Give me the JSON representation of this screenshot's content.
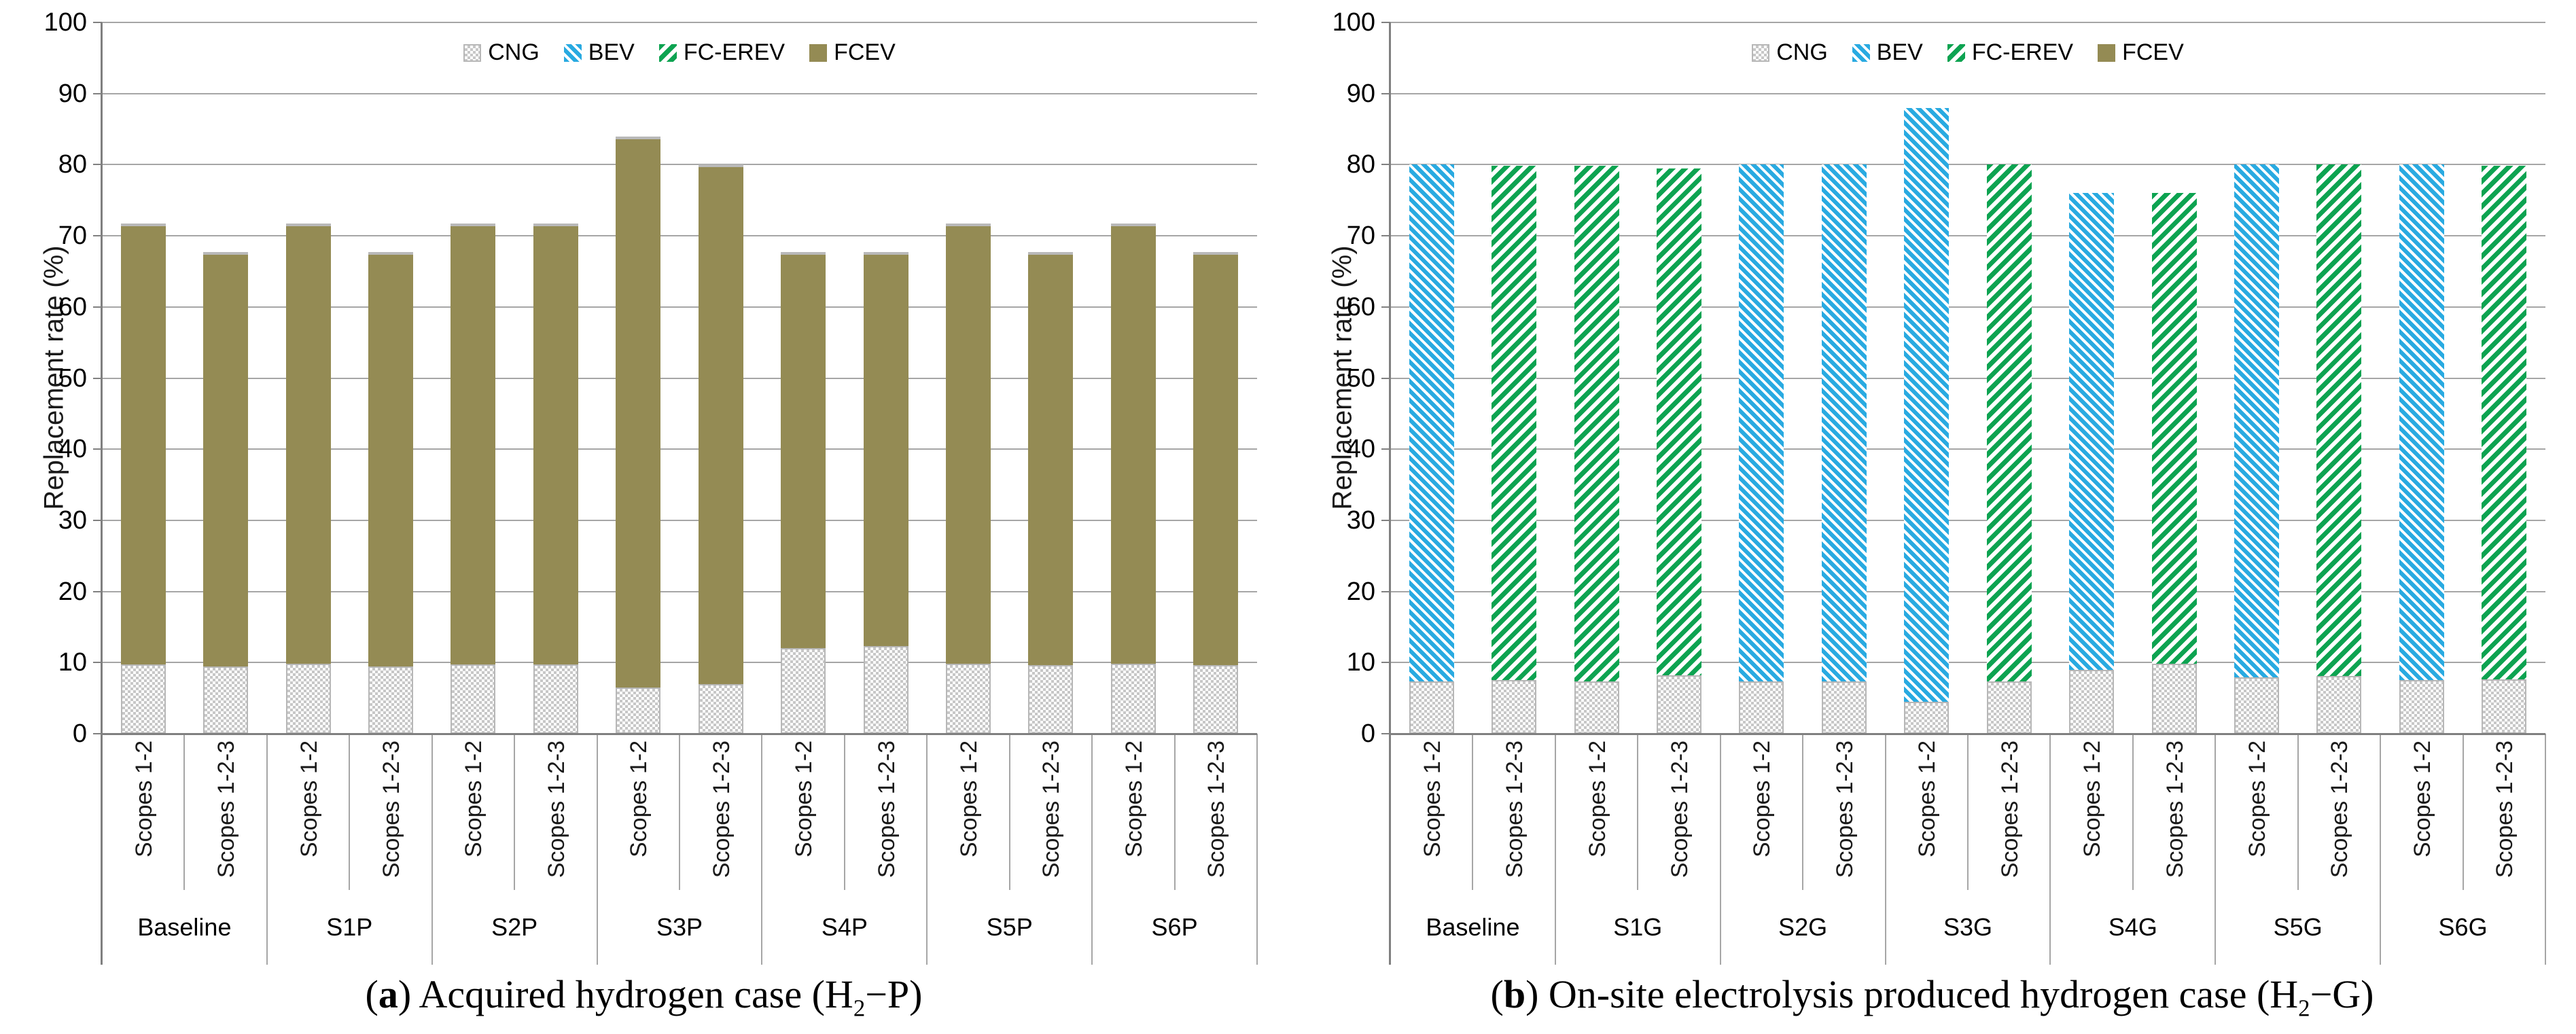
{
  "figure": {
    "captions": [
      {
        "open": "(",
        "letter": "a",
        "close": ") ",
        "text": "Acquired hydrogen case ",
        "formula_open": "(H",
        "formula_sub": "2",
        "formula_rest": "−P)"
      },
      {
        "open": "(",
        "letter": "b",
        "close": ") ",
        "text": "On-site electrolysis produced hydrogen case ",
        "formula_open": "(H",
        "formula_sub": "2",
        "formula_rest": "−G)"
      }
    ]
  },
  "colors": {
    "CNG": "#c7c7c7",
    "BEV": "#29aae1",
    "FC-EREV": "#0da351",
    "FCEV": "#948b54",
    "gridline": "#a6a6a6",
    "axis": "#808080"
  },
  "patterns": {
    "CNG": "checker",
    "BEV": "hatch-back",
    "FC-EREV": "hatch-forward",
    "FCEV": "solid"
  },
  "chart_data": [
    {
      "type": "bar",
      "stacked": true,
      "ylabel": "Replacement rate (%)",
      "ylim": [
        0,
        100
      ],
      "ytick_step": 10,
      "grid": true,
      "legend": [
        "CNG",
        "BEV",
        "FC-EREV",
        "FCEV"
      ],
      "legend_position": "top-center-inside",
      "groups": [
        "Baseline",
        "S1P",
        "S2P",
        "S3P",
        "S4P",
        "S5P",
        "S6P"
      ],
      "scopes": [
        "Scopes 1-2",
        "Scopes 1-2-3"
      ],
      "bars": [
        {
          "group": "Baseline",
          "scope": "Scopes 1-2",
          "cng": 9.7,
          "tech": "FCEV",
          "tech_value": 62.0,
          "total": 71.7
        },
        {
          "group": "Baseline",
          "scope": "Scopes 1-2-3",
          "cng": 9.5,
          "tech": "FCEV",
          "tech_value": 58.2,
          "total": 67.7
        },
        {
          "group": "S1P",
          "scope": "Scopes 1-2",
          "cng": 9.8,
          "tech": "FCEV",
          "tech_value": 61.9,
          "total": 71.7
        },
        {
          "group": "S1P",
          "scope": "Scopes 1-2-3",
          "cng": 9.5,
          "tech": "FCEV",
          "tech_value": 58.2,
          "total": 67.7
        },
        {
          "group": "S2P",
          "scope": "Scopes 1-2",
          "cng": 9.7,
          "tech": "FCEV",
          "tech_value": 62.0,
          "total": 71.7
        },
        {
          "group": "S2P",
          "scope": "Scopes 1-2-3",
          "cng": 9.7,
          "tech": "FCEV",
          "tech_value": 62.0,
          "total": 71.7
        },
        {
          "group": "S3P",
          "scope": "Scopes 1-2",
          "cng": 6.5,
          "tech": "FCEV",
          "tech_value": 77.5,
          "total": 84.0
        },
        {
          "group": "S3P",
          "scope": "Scopes 1-2-3",
          "cng": 7.0,
          "tech": "FCEV",
          "tech_value": 73.0,
          "total": 80.0
        },
        {
          "group": "S4P",
          "scope": "Scopes 1-2",
          "cng": 12.0,
          "tech": "FCEV",
          "tech_value": 55.7,
          "total": 67.7
        },
        {
          "group": "S4P",
          "scope": "Scopes 1-2-3",
          "cng": 12.3,
          "tech": "FCEV",
          "tech_value": 55.4,
          "total": 67.7
        },
        {
          "group": "S5P",
          "scope": "Scopes 1-2",
          "cng": 9.8,
          "tech": "FCEV",
          "tech_value": 61.9,
          "total": 71.7
        },
        {
          "group": "S5P",
          "scope": "Scopes 1-2-3",
          "cng": 9.6,
          "tech": "FCEV",
          "tech_value": 58.1,
          "total": 67.7
        },
        {
          "group": "S6P",
          "scope": "Scopes 1-2",
          "cng": 9.8,
          "tech": "FCEV",
          "tech_value": 61.9,
          "total": 71.7
        },
        {
          "group": "S6P",
          "scope": "Scopes 1-2-3",
          "cng": 9.6,
          "tech": "FCEV",
          "tech_value": 58.1,
          "total": 67.7
        }
      ]
    },
    {
      "type": "bar",
      "stacked": true,
      "ylabel": "Replacement rate (%)",
      "ylim": [
        0,
        100
      ],
      "ytick_step": 10,
      "grid": true,
      "legend": [
        "CNG",
        "BEV",
        "FC-EREV",
        "FCEV"
      ],
      "legend_position": "top-center-inside",
      "groups": [
        "Baseline",
        "S1G",
        "S2G",
        "S3G",
        "S4G",
        "S5G",
        "S6G"
      ],
      "scopes": [
        "Scopes 1-2",
        "Scopes 1-2-3"
      ],
      "bars": [
        {
          "group": "Baseline",
          "scope": "Scopes 1-2",
          "cng": 7.4,
          "tech": "BEV",
          "tech_value": 72.6,
          "total": 80.0
        },
        {
          "group": "Baseline",
          "scope": "Scopes 1-2-3",
          "cng": 7.5,
          "tech": "FC-EREV",
          "tech_value": 72.3,
          "total": 79.8
        },
        {
          "group": "S1G",
          "scope": "Scopes 1-2",
          "cng": 7.4,
          "tech": "FC-EREV",
          "tech_value": 72.4,
          "total": 79.8
        },
        {
          "group": "S1G",
          "scope": "Scopes 1-2-3",
          "cng": 8.2,
          "tech": "FC-EREV",
          "tech_value": 71.3,
          "total": 79.5
        },
        {
          "group": "S2G",
          "scope": "Scopes 1-2",
          "cng": 7.4,
          "tech": "BEV",
          "tech_value": 72.6,
          "total": 80.0
        },
        {
          "group": "S2G",
          "scope": "Scopes 1-2-3",
          "cng": 7.4,
          "tech": "BEV",
          "tech_value": 72.6,
          "total": 80.0
        },
        {
          "group": "S3G",
          "scope": "Scopes 1-2",
          "cng": 4.5,
          "tech": "BEV",
          "tech_value": 83.5,
          "total": 88.0
        },
        {
          "group": "S3G",
          "scope": "Scopes 1-2-3",
          "cng": 7.4,
          "tech": "FC-EREV",
          "tech_value": 72.6,
          "total": 80.0
        },
        {
          "group": "S4G",
          "scope": "Scopes 1-2",
          "cng": 9.0,
          "tech": "BEV",
          "tech_value": 67.0,
          "total": 76.0
        },
        {
          "group": "S4G",
          "scope": "Scopes 1-2-3",
          "cng": 9.8,
          "tech": "FC-EREV",
          "tech_value": 66.2,
          "total": 76.0
        },
        {
          "group": "S5G",
          "scope": "Scopes 1-2",
          "cng": 7.9,
          "tech": "BEV",
          "tech_value": 72.1,
          "total": 80.0
        },
        {
          "group": "S5G",
          "scope": "Scopes 1-2-3",
          "cng": 8.1,
          "tech": "FC-EREV",
          "tech_value": 71.9,
          "total": 80.0
        },
        {
          "group": "S6G",
          "scope": "Scopes 1-2",
          "cng": 7.5,
          "tech": "BEV",
          "tech_value": 72.5,
          "total": 80.0
        },
        {
          "group": "S6G",
          "scope": "Scopes 1-2-3",
          "cng": 7.6,
          "tech": "FC-EREV",
          "tech_value": 72.2,
          "total": 79.8
        }
      ]
    }
  ]
}
